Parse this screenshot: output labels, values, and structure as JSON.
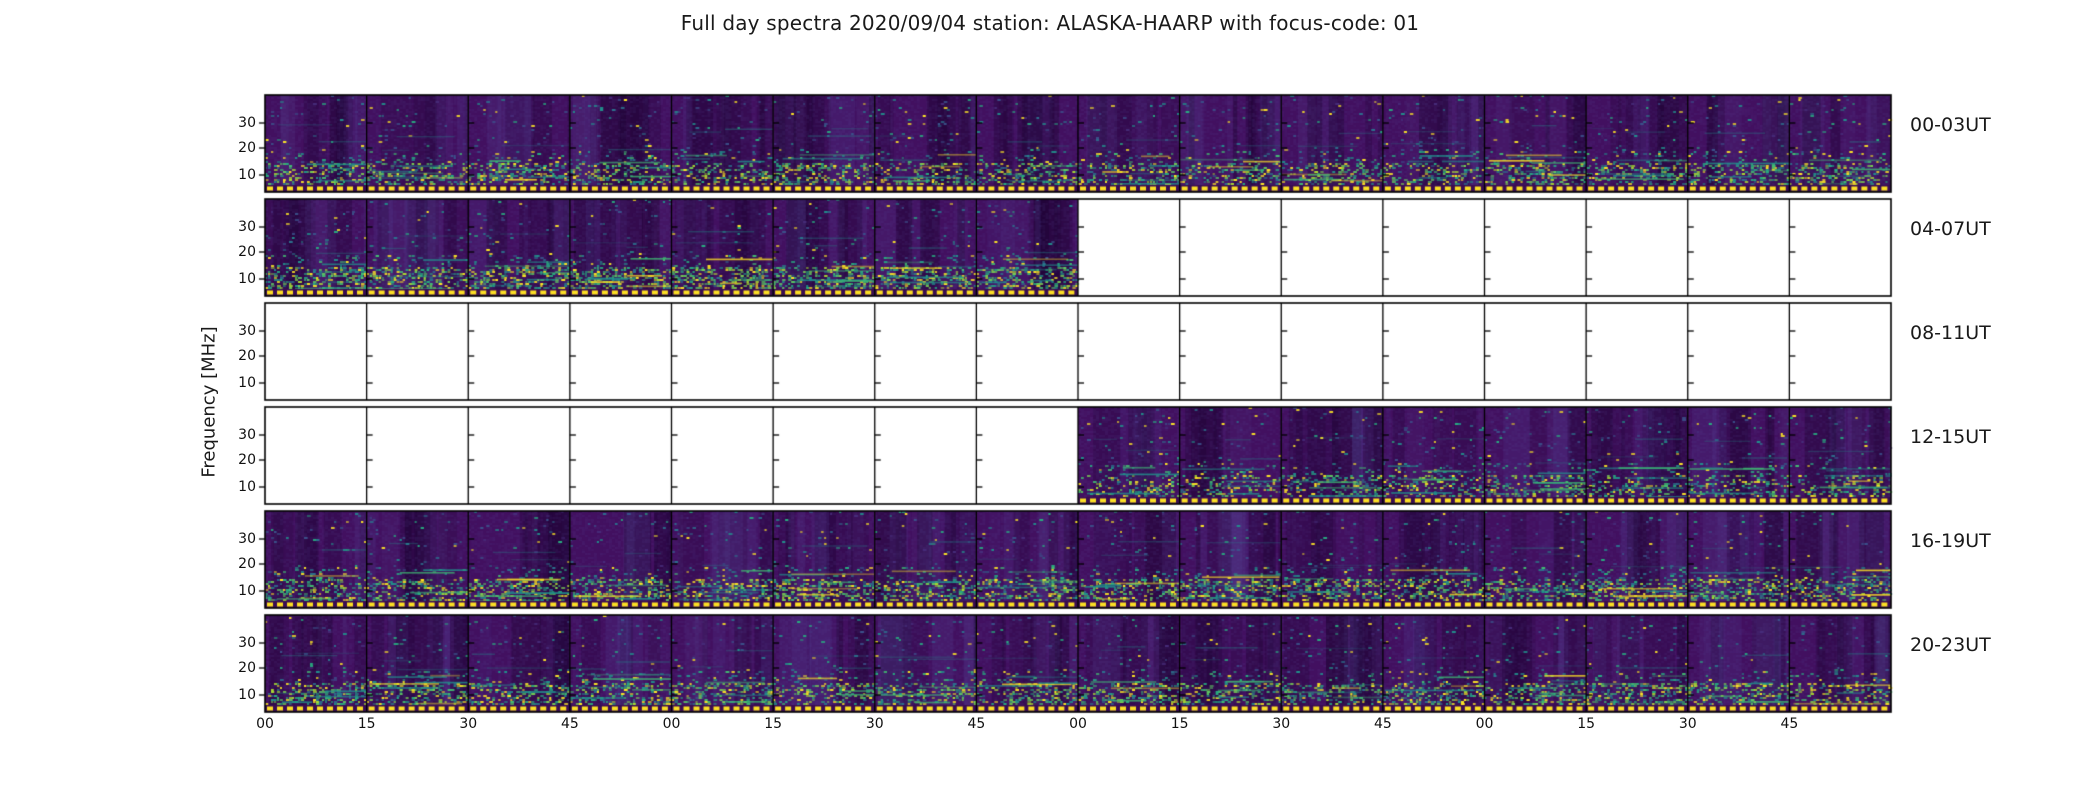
{
  "title": "Full day spectra 2020/09/04 station: ALASKA-HAARP with focus-code: 01",
  "ylabel": "Frequency [MHz]",
  "y_ticks": [
    "30",
    "20",
    "10"
  ],
  "x_ticks": [
    "00",
    "15",
    "30",
    "45",
    "00",
    "15",
    "30",
    "45",
    "00",
    "15",
    "30",
    "45",
    "00",
    "15",
    "30",
    "45"
  ],
  "colors": {
    "figure_bg": "#ffffff",
    "axis_line": "#000000",
    "spectrogram_base": "#421060",
    "dark_band": "#320a4a",
    "bottom_strip": "#3a0d52",
    "dashed_line_yellow": "#fcdf24",
    "teal": "#21918c",
    "green": "#3fbc73",
    "noise_palette_upper": [
      "#3b528b",
      "#3b528b",
      "#472d7b",
      "#2c728e",
      "#21918c",
      "#28ae80",
      "#fde725"
    ],
    "noise_palette_mid": [
      "#2c728e",
      "#21918c",
      "#21918c",
      "#27ad81",
      "#3b528b",
      "#42be71",
      "#fde725"
    ],
    "noise_palette_lower": [
      "#21918c",
      "#27ad81",
      "#27ad81",
      "#42be71",
      "#5ec962",
      "#7ad151",
      "#aadc32",
      "#fde725",
      "#fde725",
      "#2c728e"
    ]
  },
  "chart_data": {
    "type": "heatmap",
    "subtype": "spectrogram-grid",
    "title": "Full day spectra 2020/09/04 station: ALASKA-HAARP with focus-code: 01",
    "date": "2020/09/04",
    "station": "ALASKA-HAARP",
    "focus_code": "01",
    "colormap": "viridis",
    "y_axis": {
      "label": "Frequency [MHz]",
      "tick_values_mhz": [
        30,
        20,
        10
      ],
      "approx_range_mhz": [
        3,
        41
      ]
    },
    "x_axis": {
      "hours_per_row": 4,
      "tick_interval_minutes": 15,
      "labels_cycle": [
        "00",
        "15",
        "30",
        "45"
      ],
      "segments_per_row": 16
    },
    "legend_position": "none",
    "grid": "15-minute segment boundaries drawn as vertical black lines with inner frequency ticks",
    "rows": [
      {
        "label": "00-03UT",
        "hours_utc": "00:00-04:00",
        "data_coverage": "00:00-04:00",
        "seg_start": 0,
        "seg_end": 16
      },
      {
        "label": "04-07UT",
        "hours_utc": "04:00-08:00",
        "data_coverage": "04:00-06:00",
        "seg_start": 0,
        "seg_end": 8
      },
      {
        "label": "08-11UT",
        "hours_utc": "08:00-12:00",
        "data_coverage": "none",
        "seg_start": 0,
        "seg_end": 0
      },
      {
        "label": "12-15UT",
        "hours_utc": "12:00-16:00",
        "data_coverage": "14:00-16:00",
        "seg_start": 8,
        "seg_end": 16
      },
      {
        "label": "16-19UT",
        "hours_utc": "16:00-20:00",
        "data_coverage": "16:00-20:00",
        "seg_start": 0,
        "seg_end": 16
      },
      {
        "label": "20-23UT",
        "hours_utc": "20:00-24:00",
        "data_coverage": "20:00-24:00",
        "seg_start": 0,
        "seg_end": 16
      }
    ],
    "visual_notes": "Dark viridis-purple background noise; enhanced teal/green/yellow backscatter band below ~15 MHz; saturated yellow dashed line at lowest frequency bin of every recorded segment; missing data shown as white panels."
  }
}
